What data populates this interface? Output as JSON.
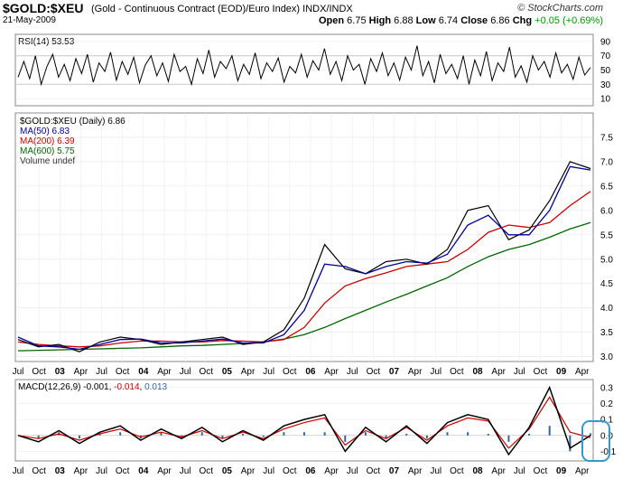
{
  "header": {
    "symbol": "$GOLD:$XEU",
    "description": "(Gold - Continuous Contract (EOD)/Euro Index)",
    "exchange": "INDX/INDX",
    "date": "21-May-2009",
    "logo": "© StockCharts.com",
    "open_label": "Open",
    "open": "6.75",
    "high_label": "High",
    "high": "6.88",
    "low_label": "Low",
    "low": "6.74",
    "close_label": "Close",
    "close": "6.86",
    "chg_label": "Chg",
    "chg": "+0.05 (+0.69%)"
  },
  "colors": {
    "price": "#000000",
    "ma50": "#000099",
    "ma200": "#cc0000",
    "ma600": "#006600",
    "macd": "#000000",
    "signal": "#cc0000",
    "histogram": "#336699",
    "highlight": "#3399cc"
  },
  "chart_data": [
    {
      "type": "line",
      "panel": "rsi",
      "legend": "RSI(14) 53.53",
      "ylim": [
        0,
        100
      ],
      "yticks": [
        10,
        30,
        50,
        70,
        90
      ],
      "reference_lines": [
        30,
        70
      ],
      "values": [
        40,
        62,
        38,
        70,
        30,
        55,
        72,
        40,
        58,
        35,
        66,
        45,
        72,
        33,
        60,
        48,
        75,
        36,
        62,
        44,
        68,
        32,
        57,
        70,
        42,
        60,
        34,
        72,
        48,
        55,
        30,
        66,
        45,
        78,
        40,
        62,
        52,
        70,
        35,
        58,
        44,
        74,
        38,
        60,
        48,
        67,
        33,
        55,
        46,
        72,
        40,
        63,
        50,
        80,
        44,
        62,
        35,
        70,
        50,
        58,
        30,
        66,
        48,
        74,
        42,
        60,
        36,
        68,
        50,
        84,
        42,
        62,
        32,
        72,
        45,
        58,
        38,
        70,
        30,
        64,
        42,
        76,
        35,
        60,
        48,
        82,
        40,
        56,
        33,
        70,
        50,
        62,
        40,
        74,
        46,
        58,
        37,
        68,
        43,
        53.53
      ]
    },
    {
      "type": "line",
      "panel": "price",
      "title": "$GOLD:$XEU (Daily) 6.86",
      "x": [
        "2002-07",
        "2002-10",
        "2003-01",
        "2003-04",
        "2003-07",
        "2003-10",
        "2004-01",
        "2004-04",
        "2004-07",
        "2004-10",
        "2005-01",
        "2005-04",
        "2005-07",
        "2005-10",
        "2006-01",
        "2006-04",
        "2006-07",
        "2006-10",
        "2007-01",
        "2007-04",
        "2007-07",
        "2007-10",
        "2008-01",
        "2008-04",
        "2008-07",
        "2008-10",
        "2009-01",
        "2009-04",
        "2009-05"
      ],
      "xticks": [
        "Jul",
        "Oct",
        "03",
        "Apr",
        "Jul",
        "Oct",
        "04",
        "Apr",
        "Jul",
        "Oct",
        "05",
        "Apr",
        "Jul",
        "Oct",
        "06",
        "Apr",
        "Jul",
        "Oct",
        "07",
        "Apr",
        "Jul",
        "Oct",
        "08",
        "Apr",
        "Jul",
        "Oct",
        "09",
        "Apr"
      ],
      "ylim": [
        2.9,
        8.0
      ],
      "yticks": [
        3.0,
        3.5,
        4.0,
        4.5,
        5.0,
        5.5,
        6.0,
        6.5,
        7.0,
        7.5
      ],
      "series": [
        {
          "name": "$GOLD:$XEU (Daily) 6.86",
          "values": [
            3.35,
            3.2,
            3.25,
            3.1,
            3.3,
            3.4,
            3.35,
            3.25,
            3.3,
            3.35,
            3.4,
            3.25,
            3.3,
            3.55,
            4.2,
            5.3,
            4.8,
            4.7,
            4.95,
            5.0,
            4.9,
            5.2,
            6.0,
            6.1,
            5.4,
            5.6,
            6.2,
            7.0,
            6.86
          ]
        },
        {
          "name": "MA(50) 6.83",
          "values": [
            3.4,
            3.22,
            3.2,
            3.15,
            3.25,
            3.35,
            3.36,
            3.28,
            3.28,
            3.32,
            3.36,
            3.28,
            3.28,
            3.45,
            3.95,
            4.9,
            4.85,
            4.7,
            4.85,
            4.95,
            4.92,
            5.1,
            5.7,
            5.9,
            5.5,
            5.5,
            6.0,
            6.9,
            6.83
          ]
        },
        {
          "name": "MA(200) 6.39",
          "values": [
            3.3,
            3.25,
            3.22,
            3.2,
            3.22,
            3.28,
            3.32,
            3.32,
            3.3,
            3.3,
            3.33,
            3.32,
            3.3,
            3.35,
            3.6,
            4.1,
            4.45,
            4.6,
            4.72,
            4.85,
            4.9,
            4.95,
            5.2,
            5.55,
            5.7,
            5.65,
            5.75,
            6.1,
            6.39
          ]
        },
        {
          "name": "MA(600) 5.75",
          "values": [
            3.12,
            3.13,
            3.14,
            3.15,
            3.16,
            3.17,
            3.18,
            3.2,
            3.22,
            3.23,
            3.25,
            3.27,
            3.3,
            3.36,
            3.45,
            3.6,
            3.78,
            3.95,
            4.12,
            4.28,
            4.45,
            4.62,
            4.85,
            5.05,
            5.2,
            5.3,
            5.45,
            5.62,
            5.75
          ]
        }
      ],
      "extra_legend": "Volume undef"
    },
    {
      "type": "line",
      "panel": "macd",
      "legend_prefix": "MACD(12,26,9)",
      "legend_macd": "-0.001",
      "legend_signal": "-0.014",
      "legend_hist": "0.013",
      "ylim": [
        -0.16,
        0.35
      ],
      "yticks": [
        -0.1,
        0.0,
        0.1,
        0.2,
        0.3
      ],
      "macd": [
        0.0,
        -0.04,
        0.03,
        -0.05,
        0.02,
        0.06,
        -0.03,
        0.04,
        -0.02,
        0.05,
        -0.04,
        0.03,
        -0.03,
        0.06,
        0.1,
        0.13,
        -0.1,
        0.05,
        -0.04,
        0.06,
        -0.05,
        0.08,
        0.13,
        0.1,
        -0.12,
        0.05,
        0.3,
        -0.08,
        -0.001
      ],
      "signal": [
        0.0,
        -0.02,
        0.01,
        -0.03,
        0.01,
        0.04,
        -0.01,
        0.02,
        -0.01,
        0.03,
        -0.02,
        0.02,
        -0.02,
        0.04,
        0.08,
        0.11,
        -0.06,
        0.03,
        -0.02,
        0.05,
        -0.03,
        0.06,
        0.11,
        0.09,
        -0.08,
        0.04,
        0.24,
        0.02,
        -0.014
      ]
    }
  ]
}
